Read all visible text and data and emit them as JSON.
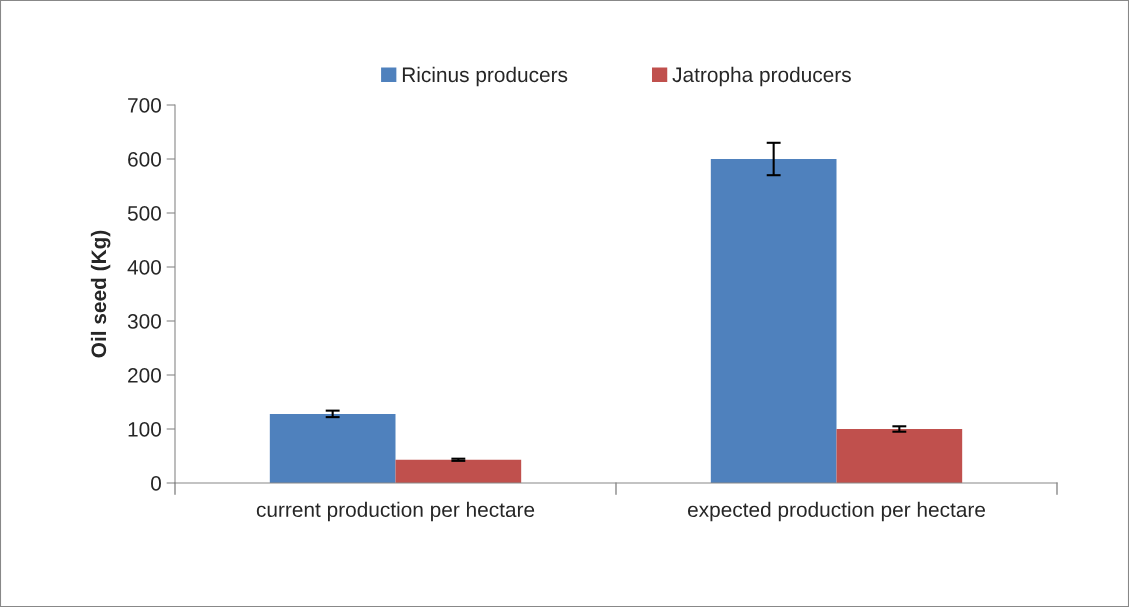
{
  "chart_data": {
    "type": "bar",
    "ylabel": "Oil seed (Kg)",
    "categories": [
      "current production per hectare",
      "expected production per hectare"
    ],
    "series": [
      {
        "name": "Ricinus producers",
        "color": "#4f81bd",
        "values": [
          128,
          600
        ],
        "errors": [
          6,
          30
        ]
      },
      {
        "name": "Jatropha producers",
        "color": "#c0504d",
        "values": [
          43,
          100
        ],
        "errors": [
          2,
          5
        ]
      }
    ],
    "ylim": [
      0,
      700
    ],
    "yticks": [
      0,
      100,
      200,
      300,
      400,
      500,
      600,
      700
    ],
    "grid": false,
    "legend": "top"
  }
}
